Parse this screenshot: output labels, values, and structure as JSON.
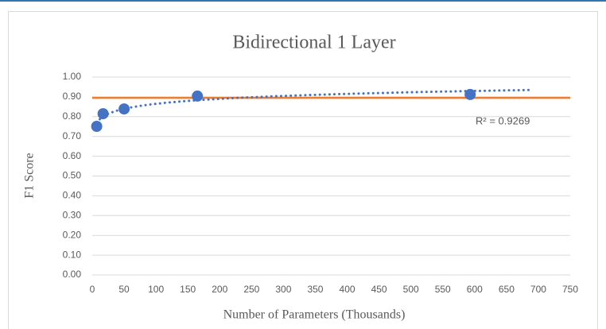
{
  "chart_data": {
    "type": "scatter",
    "title": "Bidirectional 1 Layer",
    "xlabel": "Number of Parameters (Thousands)",
    "ylabel": "F1 Score",
    "series": [
      {
        "name": "F1 Score",
        "color": "#4472c4",
        "x": [
          7,
          17,
          50,
          165,
          593
        ],
        "values": [
          0.751,
          0.815,
          0.839,
          0.904,
          0.912
        ]
      }
    ],
    "trendline": {
      "type": "log",
      "color": "#4472c4",
      "x_end": 685
    },
    "hline": {
      "value": 0.895,
      "color": "#ed7d31"
    },
    "annotation": "R² = 0.9269",
    "xlim": [
      0,
      750
    ],
    "xticks": [
      0,
      50,
      100,
      150,
      200,
      250,
      300,
      350,
      400,
      450,
      500,
      550,
      600,
      650,
      700,
      750
    ],
    "ylim": [
      0,
      1
    ],
    "yticks": [
      {
        "value": 0,
        "label": "0.00"
      },
      {
        "value": 0.1,
        "label": "0.10"
      },
      {
        "value": 0.2,
        "label": "0.20"
      },
      {
        "value": 0.3,
        "label": "0.30"
      },
      {
        "value": 0.4,
        "label": "0.40"
      },
      {
        "value": 0.5,
        "label": "0.50"
      },
      {
        "value": 0.6,
        "label": "0.60"
      },
      {
        "value": 0.7,
        "label": "0.70"
      },
      {
        "value": 0.8,
        "label": "0.80"
      },
      {
        "value": 0.9,
        "label": "0.90"
      },
      {
        "value": 1,
        "label": "1.00"
      }
    ],
    "grid": true
  }
}
